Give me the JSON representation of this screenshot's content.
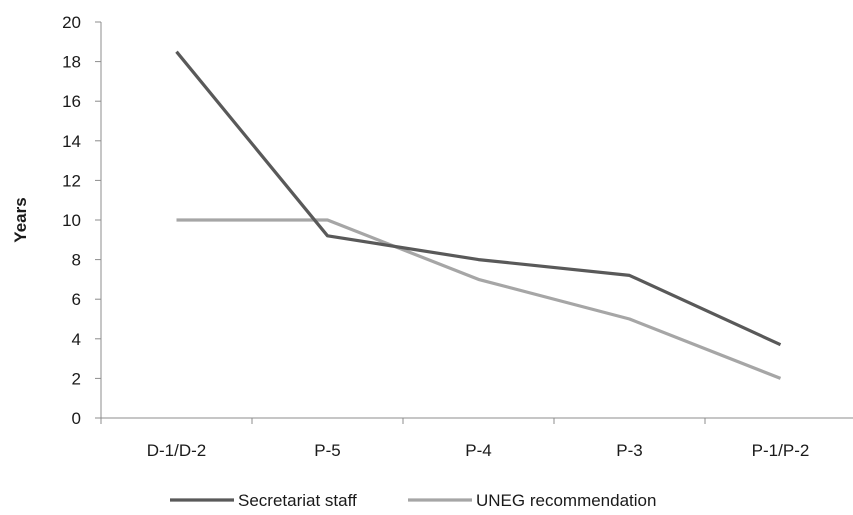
{
  "chart_data": {
    "type": "line",
    "title": "",
    "xlabel": "",
    "ylabel": "Years",
    "ylim": [
      0,
      20
    ],
    "yticks": [
      0,
      2,
      4,
      6,
      8,
      10,
      12,
      14,
      16,
      18,
      20
    ],
    "categories": [
      "D-1/D-2",
      "P-5",
      "P-4",
      "P-3",
      "P-1/P-2"
    ],
    "grid": false,
    "legend_position": "bottom",
    "series": [
      {
        "name": "Secretariat staff",
        "values": [
          18.5,
          9.2,
          8.0,
          7.2,
          3.7
        ],
        "color": "#595959"
      },
      {
        "name": "UNEG recommendation",
        "values": [
          10,
          10,
          7,
          5,
          2
        ],
        "color": "#a6a6a6"
      }
    ]
  }
}
